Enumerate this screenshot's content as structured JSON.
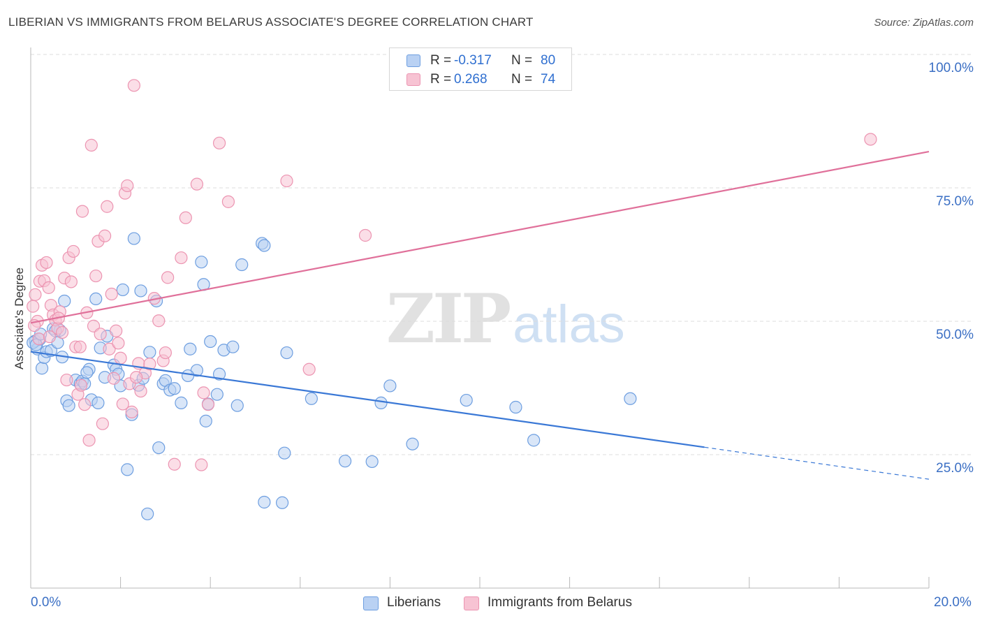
{
  "title": "LIBERIAN VS IMMIGRANTS FROM BELARUS ASSOCIATE'S DEGREE CORRELATION CHART",
  "source": "Source: ZipAtlas.com",
  "watermark": {
    "zip": "ZIP",
    "atlas": "atlas"
  },
  "legend": {
    "series": [
      {
        "r_label": "R =",
        "r_value": "-0.317",
        "n_label": "N =",
        "n_value": "80"
      },
      {
        "r_label": "R =",
        "r_value": "0.268",
        "n_label": "N =",
        "n_value": "74"
      }
    ]
  },
  "colors": {
    "blue_fill": "#b9d1f3",
    "blue_stroke": "#6d9ee0",
    "blue_line": "#3a78d6",
    "pink_fill": "#f7c3d3",
    "pink_stroke": "#ec94b1",
    "pink_line": "#e0709a",
    "grid": "#dcdcdc",
    "axis_text": "#3b6fc4"
  },
  "chart_data": {
    "type": "scatter",
    "title": "LIBERIAN VS IMMIGRANTS FROM BELARUS ASSOCIATE'S DEGREE CORRELATION CHART",
    "xlabel": "",
    "ylabel": "Associate's Degree",
    "xlim": [
      0,
      20
    ],
    "ylim": [
      5,
      105
    ],
    "x_tick_labels": [
      "0.0%",
      "20.0%"
    ],
    "y_ticks": [
      25,
      50,
      75,
      100
    ],
    "y_tick_labels": [
      "25.0%",
      "50.0%",
      "75.0%",
      "100.0%"
    ],
    "grid": true,
    "legend_position": "bottom",
    "series": [
      {
        "name": "Liberians",
        "color": "#6d9ee0",
        "r": -0.317,
        "n": 80,
        "trend": {
          "x0": 0,
          "y0": 44.3,
          "x1": 15.0,
          "y1": 26.4,
          "dashed_to_x": 20,
          "dashed_to_y": 20.4
        },
        "points": [
          [
            0.1,
            46.3
          ],
          [
            0.15,
            44.8
          ],
          [
            0.2,
            46.6
          ],
          [
            0.25,
            41.2
          ],
          [
            0.3,
            43.2
          ],
          [
            0.35,
            44.3
          ],
          [
            0.45,
            44.5
          ],
          [
            0.5,
            48.6
          ],
          [
            0.6,
            46.0
          ],
          [
            0.65,
            48.3
          ],
          [
            0.7,
            43.3
          ],
          [
            0.75,
            53.8
          ],
          [
            0.8,
            35.1
          ],
          [
            0.85,
            34.2
          ],
          [
            1.0,
            39.0
          ],
          [
            1.1,
            38.3
          ],
          [
            1.15,
            38.8
          ],
          [
            1.2,
            38.3
          ],
          [
            1.3,
            41.0
          ],
          [
            1.35,
            35.3
          ],
          [
            1.45,
            54.2
          ],
          [
            1.5,
            34.7
          ],
          [
            1.55,
            45.0
          ],
          [
            1.65,
            39.5
          ],
          [
            1.7,
            47.2
          ],
          [
            1.85,
            41.8
          ],
          [
            1.9,
            41.0
          ],
          [
            2.0,
            37.9
          ],
          [
            2.05,
            55.9
          ],
          [
            2.15,
            22.2
          ],
          [
            2.25,
            32.5
          ],
          [
            2.3,
            65.5
          ],
          [
            2.4,
            38.0
          ],
          [
            2.45,
            55.7
          ],
          [
            2.5,
            39.3
          ],
          [
            2.6,
            13.9
          ],
          [
            2.65,
            44.2
          ],
          [
            2.8,
            53.8
          ],
          [
            2.85,
            26.3
          ],
          [
            2.95,
            38.3
          ],
          [
            3.0,
            38.9
          ],
          [
            3.1,
            37.1
          ],
          [
            3.2,
            37.4
          ],
          [
            3.35,
            34.7
          ],
          [
            3.55,
            44.8
          ],
          [
            3.7,
            40.8
          ],
          [
            3.8,
            61.1
          ],
          [
            3.85,
            56.9
          ],
          [
            3.9,
            31.3
          ],
          [
            3.95,
            34.5
          ],
          [
            4.0,
            46.2
          ],
          [
            4.15,
            36.3
          ],
          [
            4.2,
            40.1
          ],
          [
            4.3,
            44.6
          ],
          [
            4.5,
            45.2
          ],
          [
            4.6,
            34.2
          ],
          [
            4.7,
            60.6
          ],
          [
            5.15,
            64.6
          ],
          [
            5.2,
            64.2
          ],
          [
            5.2,
            16.1
          ],
          [
            5.6,
            16.0
          ],
          [
            5.65,
            25.3
          ],
          [
            5.7,
            44.1
          ],
          [
            6.25,
            35.5
          ],
          [
            7.0,
            23.8
          ],
          [
            7.6,
            23.7
          ],
          [
            7.8,
            34.7
          ],
          [
            8.0,
            37.9
          ],
          [
            8.5,
            27.0
          ],
          [
            9.7,
            35.2
          ],
          [
            10.8,
            33.9
          ],
          [
            11.2,
            27.7
          ],
          [
            13.35,
            35.5
          ],
          [
            0.05,
            46.0
          ],
          [
            0.12,
            45.6
          ],
          [
            0.22,
            47.6
          ],
          [
            0.55,
            48.2
          ],
          [
            1.95,
            40.1
          ],
          [
            1.25,
            40.4
          ],
          [
            3.5,
            39.8
          ]
        ]
      },
      {
        "name": "Immigrants from Belarus",
        "color": "#ec94b1",
        "r": 0.268,
        "n": 74,
        "trend": {
          "x0": 0,
          "y0": 49.7,
          "x1": 20,
          "y1": 81.8
        },
        "points": [
          [
            0.05,
            52.8
          ],
          [
            0.1,
            55.0
          ],
          [
            0.15,
            50.0
          ],
          [
            0.2,
            57.5
          ],
          [
            0.25,
            60.5
          ],
          [
            0.3,
            57.6
          ],
          [
            0.35,
            61.0
          ],
          [
            0.4,
            56.3
          ],
          [
            0.45,
            53.0
          ],
          [
            0.5,
            51.2
          ],
          [
            0.55,
            50.2
          ],
          [
            0.6,
            48.7
          ],
          [
            0.65,
            51.8
          ],
          [
            0.7,
            47.9
          ],
          [
            0.75,
            58.1
          ],
          [
            0.8,
            39.0
          ],
          [
            0.85,
            61.9
          ],
          [
            0.9,
            57.4
          ],
          [
            0.95,
            63.1
          ],
          [
            1.0,
            45.2
          ],
          [
            1.05,
            36.3
          ],
          [
            1.1,
            45.2
          ],
          [
            1.15,
            70.6
          ],
          [
            1.2,
            34.4
          ],
          [
            1.25,
            51.6
          ],
          [
            1.3,
            27.7
          ],
          [
            1.35,
            83.0
          ],
          [
            1.4,
            49.1
          ],
          [
            1.45,
            58.5
          ],
          [
            1.5,
            65.0
          ],
          [
            1.55,
            47.6
          ],
          [
            1.6,
            30.8
          ],
          [
            1.65,
            66.0
          ],
          [
            1.7,
            71.5
          ],
          [
            1.75,
            44.8
          ],
          [
            1.8,
            55.1
          ],
          [
            1.85,
            39.3
          ],
          [
            1.9,
            48.2
          ],
          [
            1.95,
            45.9
          ],
          [
            2.0,
            43.1
          ],
          [
            2.05,
            34.5
          ],
          [
            2.1,
            74.0
          ],
          [
            2.15,
            75.4
          ],
          [
            2.2,
            38.3
          ],
          [
            2.25,
            33.0
          ],
          [
            2.3,
            94.2
          ],
          [
            2.4,
            42.1
          ],
          [
            2.45,
            36.9
          ],
          [
            2.55,
            40.3
          ],
          [
            2.65,
            42.0
          ],
          [
            2.75,
            54.3
          ],
          [
            2.85,
            50.1
          ],
          [
            2.95,
            42.6
          ],
          [
            3.05,
            58.2
          ],
          [
            3.2,
            23.2
          ],
          [
            3.35,
            61.9
          ],
          [
            3.45,
            69.4
          ],
          [
            3.7,
            75.7
          ],
          [
            3.8,
            23.1
          ],
          [
            3.85,
            36.6
          ],
          [
            3.95,
            34.4
          ],
          [
            4.2,
            83.4
          ],
          [
            4.4,
            72.4
          ],
          [
            5.7,
            76.3
          ],
          [
            6.2,
            41.0
          ],
          [
            7.45,
            66.1
          ],
          [
            18.7,
            84.1
          ],
          [
            0.08,
            49.2
          ],
          [
            0.18,
            46.7
          ],
          [
            0.42,
            47.1
          ],
          [
            0.62,
            50.6
          ],
          [
            1.12,
            38.0
          ],
          [
            2.35,
            39.5
          ],
          [
            3.0,
            44.1
          ]
        ]
      }
    ]
  }
}
